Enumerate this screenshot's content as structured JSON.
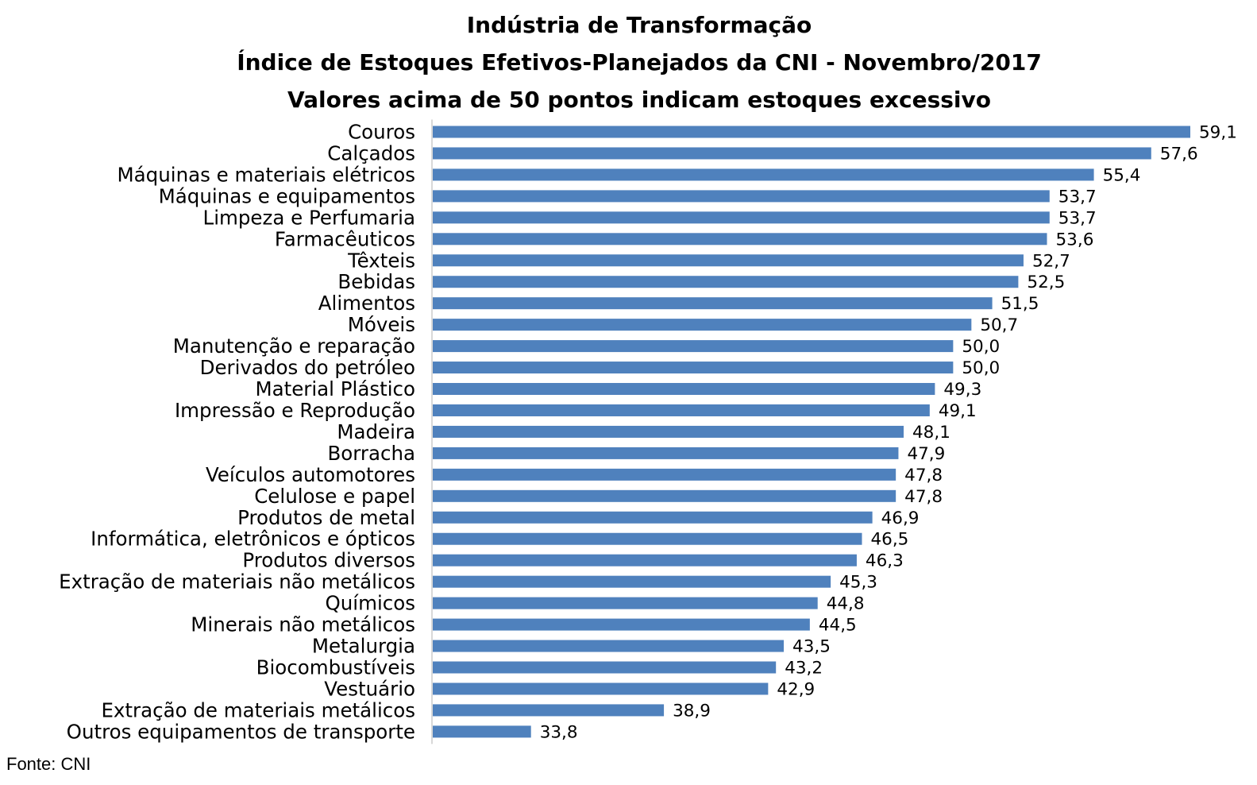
{
  "chart_data": {
    "type": "bar",
    "orientation": "horizontal",
    "title_lines": [
      "Indústria de Transformação",
      "Índice de Estoques Efetivos-Planejados da CNI - Novembro/2017",
      "Valores acima de 50 pontos indicam estoques excessivo"
    ],
    "categories": [
      "Couros",
      "Calçados",
      "Máquinas e materiais elétricos",
      "Máquinas e equipamentos",
      "Limpeza e Perfumaria",
      "Farmacêuticos",
      "Têxteis",
      "Bebidas",
      "Alimentos",
      "Móveis",
      "Manutenção e reparação",
      "Derivados do petróleo",
      "Material Plástico",
      "Impressão e Reprodução ",
      "Madeira",
      "Borracha",
      "Veículos automotores",
      "Celulose e papel",
      "Produtos de metal",
      "Informática, eletrônicos e ópticos",
      "Produtos diversos",
      "Extração de materiais não metálicos",
      "Químicos",
      "Minerais não metálicos",
      "Metalurgia",
      "Biocombustíveis",
      "Vestuário",
      "Extração de materiais metálicos",
      "Outros equipamentos de transporte"
    ],
    "values": [
      59.1,
      57.6,
      55.4,
      53.7,
      53.7,
      53.6,
      52.7,
      52.5,
      51.5,
      50.7,
      50.0,
      50.0,
      49.3,
      49.1,
      48.1,
      47.9,
      47.8,
      47.8,
      46.9,
      46.5,
      46.3,
      45.3,
      44.8,
      44.5,
      43.5,
      43.2,
      42.9,
      38.9,
      33.8
    ],
    "value_labels": [
      "59,1",
      "57,6",
      "55,4",
      "53,7",
      "53,7",
      "53,6",
      "52,7",
      "52,5",
      "51,5",
      "50,7",
      "50,0",
      "50,0",
      "49,3",
      "49,1",
      "48,1",
      "47,9",
      "47,8",
      "47,8",
      "46,9",
      "46,5",
      "46,3",
      "45,3",
      "44,8",
      "44,5",
      "43,5",
      "43,2",
      "42,9",
      "38,9",
      "33,8"
    ],
    "xlim": [
      30,
      60
    ],
    "grid": false,
    "legend": "none",
    "bar_color": "#4f81bd"
  },
  "source": "Fonte: CNI"
}
